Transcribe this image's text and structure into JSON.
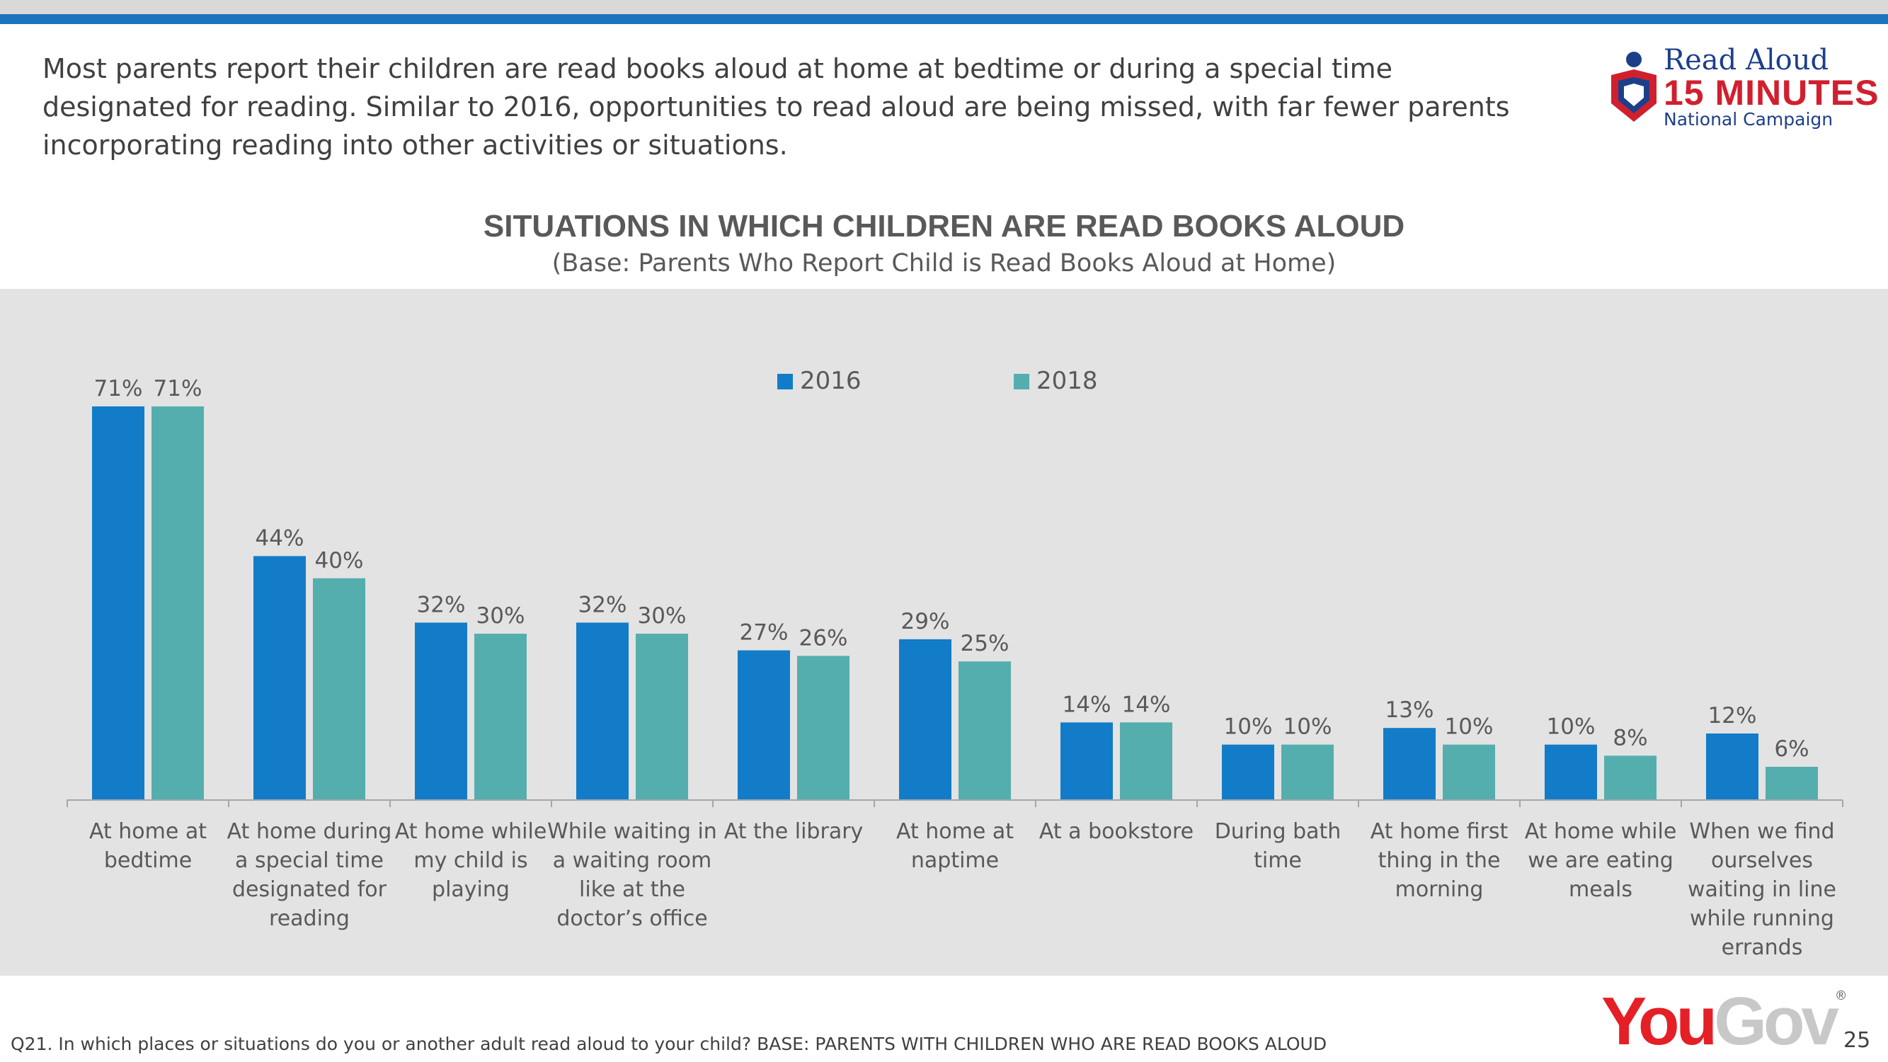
{
  "intro_text": "Most parents report their children are read books aloud at home at bedtime or during a special time designated for reading. Similar to 2016, opportunities to read aloud are being missed, with far fewer parents incorporating reading into other activities or situations.",
  "logo_readaloud": {
    "line1": "Read Aloud",
    "line2": "15 MINUTES",
    "line3": "National Campaign"
  },
  "colors": {
    "accent_bar": "#1b75bc",
    "series_2016": "#137cc8",
    "series_2018": "#55aeae",
    "panel": "#e3e3e3"
  },
  "chart_data": {
    "type": "bar",
    "title": "SITUATIONS IN WHICH CHILDREN ARE READ BOOKS ALOUD",
    "subtitle": "(Base: Parents Who Report Child is Read Books Aloud at Home)",
    "xlabel": "",
    "ylabel": "",
    "ylim": [
      0,
      71
    ],
    "legend_position": "top-center",
    "grid": false,
    "categories": [
      [
        "At home at",
        "bedtime"
      ],
      [
        "At home during",
        "a special time",
        "designated for",
        "reading"
      ],
      [
        "At home while",
        "my child is",
        "playing"
      ],
      [
        "While waiting in",
        "a waiting room",
        "like at the",
        "doctor’s office"
      ],
      [
        "At the library"
      ],
      [
        "At home at",
        "naptime"
      ],
      [
        "At a bookstore"
      ],
      [
        "During bath",
        "time"
      ],
      [
        "At home first",
        "thing in the",
        "morning"
      ],
      [
        "At home while",
        "we are eating",
        "meals"
      ],
      [
        "When we find",
        "ourselves",
        "waiting in line",
        "while running",
        "errands"
      ]
    ],
    "series": [
      {
        "name": "2016",
        "color": "#137cc8",
        "values": [
          71,
          44,
          32,
          32,
          27,
          29,
          14,
          10,
          13,
          10,
          12
        ]
      },
      {
        "name": "2018",
        "color": "#55aeae",
        "values": [
          71,
          40,
          30,
          30,
          26,
          25,
          14,
          10,
          10,
          8,
          6
        ]
      }
    ]
  },
  "footnote": "Q21. In which places or situations do you or another adult read aloud to your child? BASE: PARENTS WITH CHILDREN WHO ARE READ BOOKS ALOUD",
  "logo_yougov": {
    "you": "You",
    "gov": "Gov",
    "reg": "®"
  },
  "page_number": "25"
}
